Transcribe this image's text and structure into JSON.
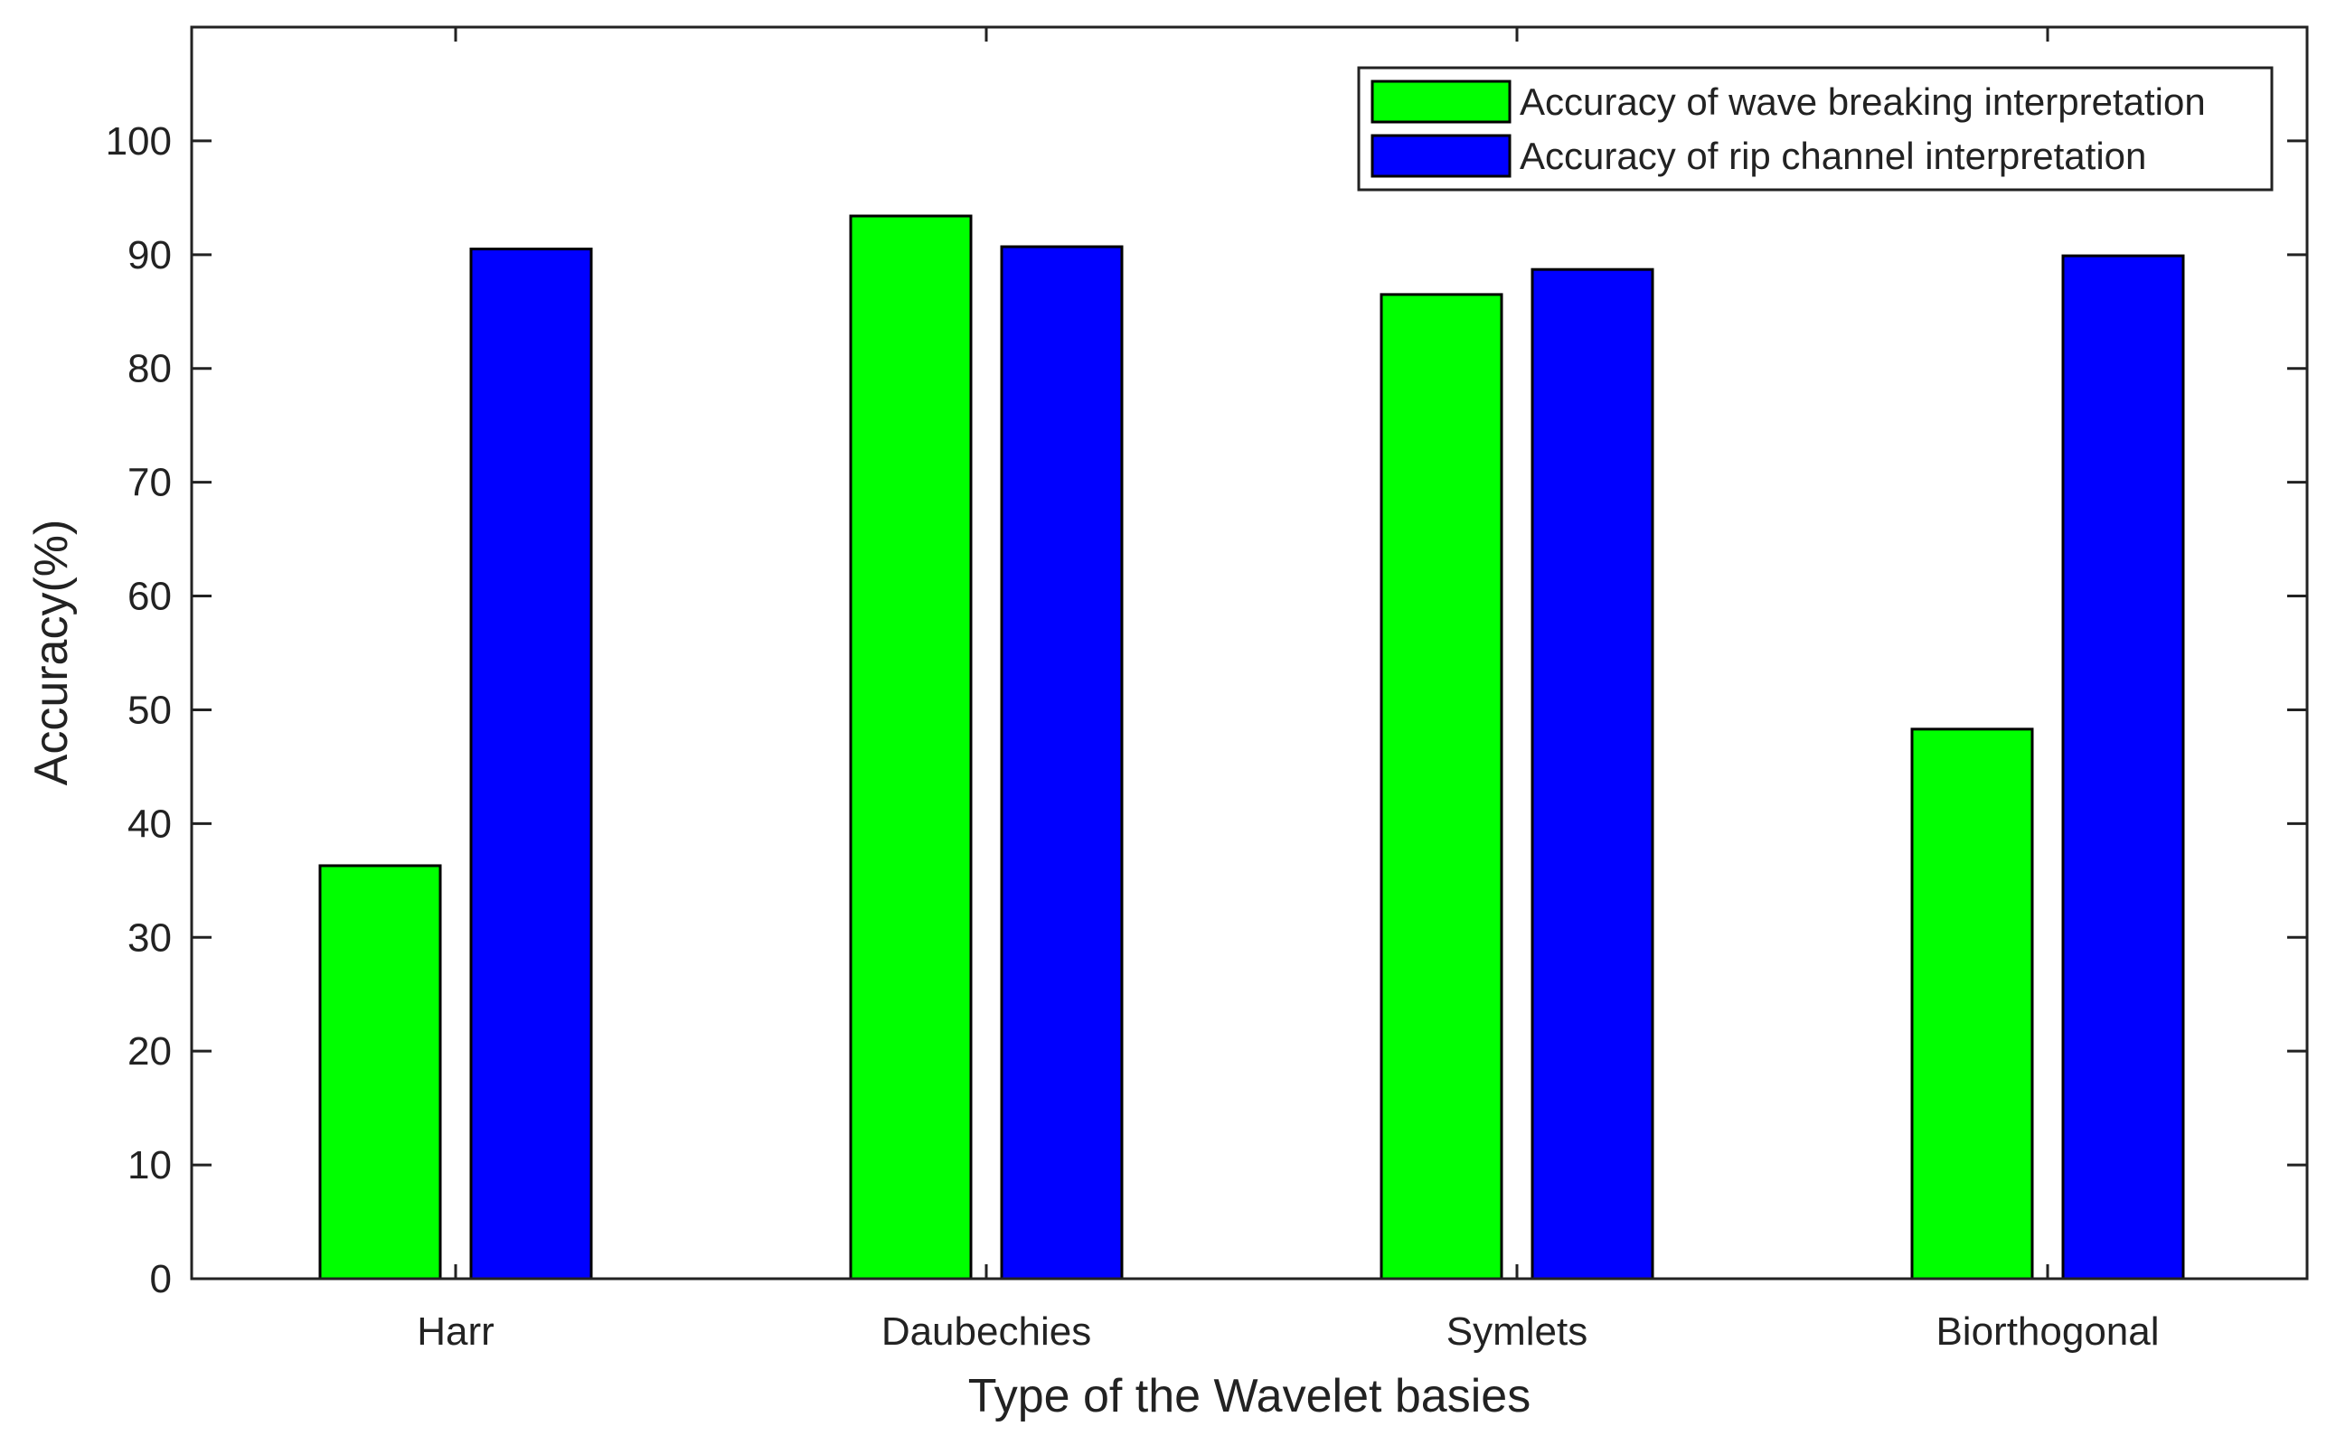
{
  "chart_data": {
    "type": "bar",
    "title": "",
    "xlabel": "Type of the Wavelet basies",
    "ylabel": "Accuracy(%)",
    "categories": [
      "Harr",
      "Daubechies",
      "Symlets",
      "Biorthogonal"
    ],
    "series": [
      {
        "name": "Accuracy of wave breaking interpretation",
        "color": "#00ff00",
        "values": [
          36.3,
          93.4,
          86.5,
          48.3
        ]
      },
      {
        "name": "Accuracy of rip channel interpretation",
        "color": "#0000ff",
        "values": [
          90.5,
          90.7,
          88.7,
          89.9
        ]
      }
    ],
    "ylim": [
      0,
      110
    ],
    "yticks": [
      0,
      10,
      20,
      30,
      40,
      50,
      60,
      70,
      80,
      90,
      100
    ],
    "grid": false,
    "legend_position": "top-right"
  }
}
